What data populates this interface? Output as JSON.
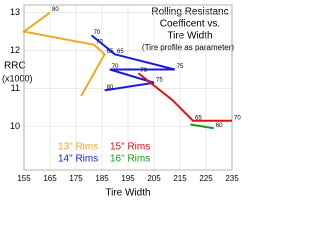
{
  "chart_data": {
    "type": "line",
    "title": [
      "Rolling Resistanc",
      "Coefficent  vs.",
      "Tire Width",
      "(Tire profile as parameter)"
    ],
    "x_label": "Tire Width",
    "y_label": "RRC",
    "y_label_unit": "(x1000)",
    "xlim": [
      155,
      235
    ],
    "xticks": [
      155,
      165,
      175,
      185,
      195,
      205,
      215,
      225,
      235
    ],
    "ylim": [
      8.85,
      13.2
    ],
    "yticks": [
      10,
      11,
      12,
      13
    ],
    "grid": true,
    "series": [
      {
        "name": "13\" Rims",
        "color": "#f5a623",
        "x": [
          165,
          155,
          182,
          186,
          177
        ],
        "values": [
          13.0,
          12.5,
          12.15,
          11.9,
          10.8
        ],
        "point_labels": [
          "80",
          null,
          "70",
          "65",
          null
        ]
      },
      {
        "name": "14\" Rims",
        "color": "#1a1adb",
        "x": [
          181,
          190,
          213,
          188,
          205,
          186
        ],
        "values": [
          12.4,
          11.9,
          11.5,
          11.5,
          11.15,
          10.95
        ],
        "point_labels": [
          "70",
          "65",
          "75",
          "70",
          "75",
          "80"
        ]
      },
      {
        "name": "15\" Rims",
        "color": "#e01010",
        "x": [
          199,
          212,
          220,
          235
        ],
        "values": [
          11.4,
          10.7,
          10.15,
          10.15
        ],
        "point_labels": [
          "70",
          null,
          "65",
          "70"
        ]
      },
      {
        "name": "16\" Rims",
        "color": "#1a9a1a",
        "x": [
          219,
          228
        ],
        "values": [
          10.05,
          9.95
        ],
        "point_labels": [
          null,
          "60"
        ]
      }
    ]
  }
}
